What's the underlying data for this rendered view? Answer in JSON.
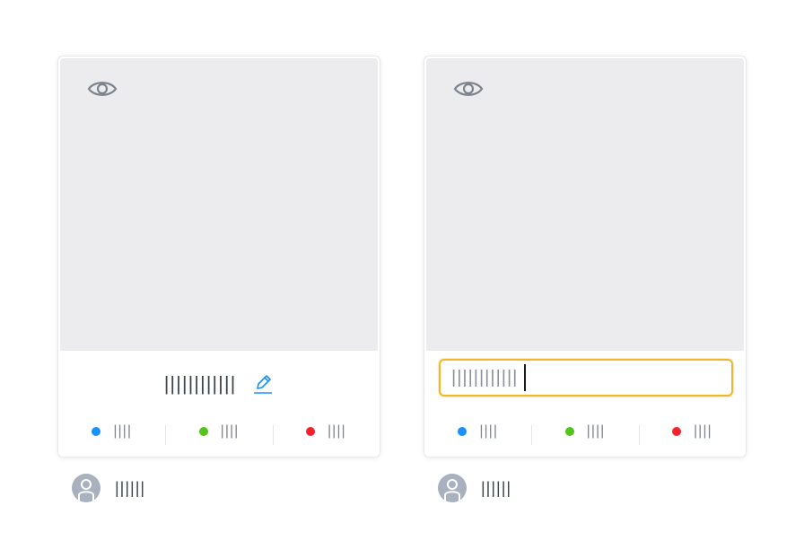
{
  "cards": [
    {
      "title": "||||||||||||",
      "stats": [
        {
          "label": "||||",
          "color": "#1890ff"
        },
        {
          "label": "||||",
          "color": "#52c41a"
        },
        {
          "label": "||||",
          "color": "#f5222d"
        }
      ],
      "owner": "||||||",
      "icons": {
        "view": "eye-icon",
        "edit": "pencil-icon",
        "avatar": "user-icon"
      }
    },
    {
      "title_input_value": "||||||||||||",
      "stats": [
        {
          "label": "||||",
          "color": "#1890ff"
        },
        {
          "label": "||||",
          "color": "#52c41a"
        },
        {
          "label": "||||",
          "color": "#f5222d"
        }
      ],
      "owner": "||||||",
      "icons": {
        "view": "eye-icon",
        "avatar": "user-icon"
      }
    }
  ],
  "colors": {
    "accent": "#1890ff",
    "focus_border": "#f5b52b"
  }
}
